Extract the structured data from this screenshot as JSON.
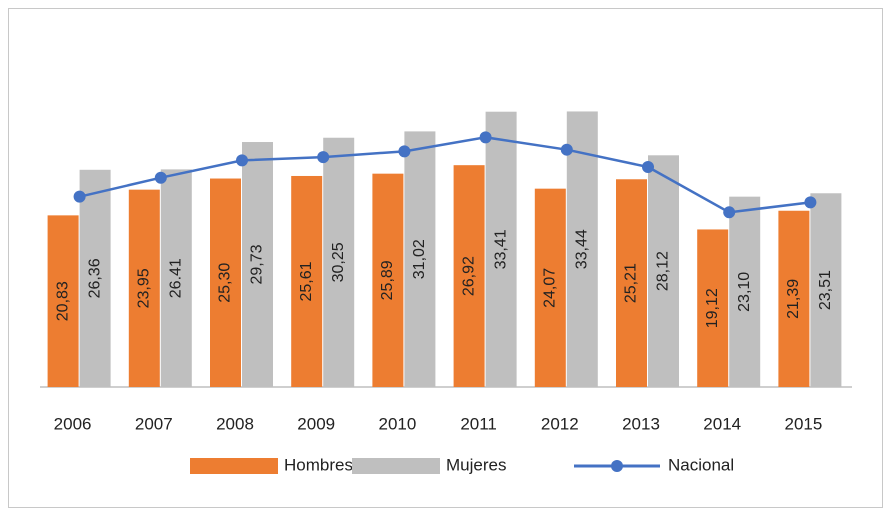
{
  "chart_data": {
    "type": "bar",
    "categories": [
      "2006",
      "2007",
      "2008",
      "2009",
      "2010",
      "2011",
      "2012",
      "2013",
      "2014",
      "2015"
    ],
    "ylim": [
      0,
      35
    ],
    "series": [
      {
        "name": "Hombres",
        "color": "#ed7d31",
        "values": [
          20.83,
          23.95,
          25.3,
          25.61,
          25.89,
          26.92,
          24.07,
          25.21,
          19.12,
          21.39
        ],
        "value_labels": [
          "20,83",
          "23,95",
          "25,30",
          "25,61",
          "25,89",
          "26,92",
          "24,07",
          "25,21",
          "19,12",
          "21,39"
        ]
      },
      {
        "name": "Mujeres",
        "color": "#bfbfbf",
        "values": [
          26.36,
          26.41,
          29.73,
          30.25,
          31.02,
          33.41,
          33.44,
          28.12,
          23.1,
          23.51
        ],
        "value_labels": [
          "26,36",
          "26.41",
          "29,73",
          "30,25",
          "31,02",
          "33,41",
          "33,44",
          "28,12",
          "23,10",
          "23,51"
        ]
      },
      {
        "name": "Nacional",
        "type": "line",
        "color": "#4472c4",
        "values": [
          23.1,
          25.4,
          27.5,
          27.9,
          28.6,
          30.3,
          28.8,
          26.7,
          21.2,
          22.4
        ]
      }
    ]
  }
}
